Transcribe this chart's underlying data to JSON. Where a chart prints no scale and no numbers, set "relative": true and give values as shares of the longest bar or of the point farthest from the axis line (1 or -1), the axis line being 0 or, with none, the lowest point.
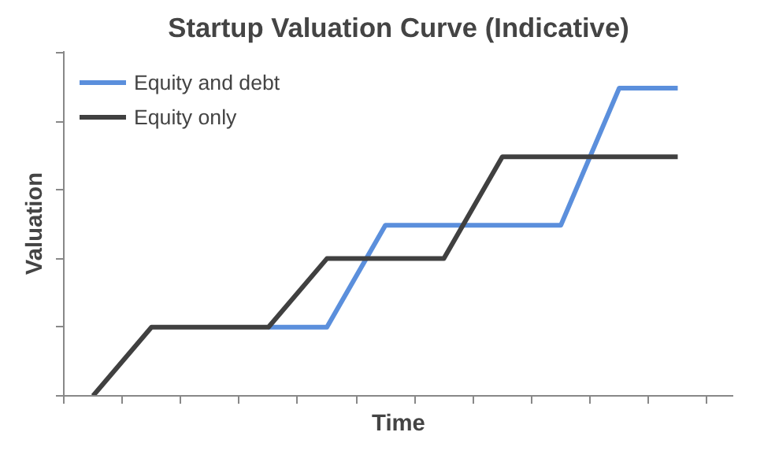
{
  "chart_data": {
    "type": "line",
    "title": "Startup Valuation Curve (Indicative)",
    "xlabel": "Time",
    "ylabel": "Valuation",
    "relative": true,
    "categories": [
      null,
      null,
      null,
      null,
      null,
      null,
      null,
      null,
      null,
      null,
      null
    ],
    "series": [
      {
        "name": "Equity and debt",
        "color": "#5b8fdc",
        "values": [
          null,
          null,
          null,
          0.223,
          0.223,
          0.554,
          0.554,
          0.554,
          0.554,
          1,
          1
        ]
      },
      {
        "name": "Equity only",
        "color": "#404040",
        "values": [
          0,
          0.223,
          0.223,
          0.223,
          0.446,
          0.446,
          0.446,
          0.777,
          0.777,
          0.777,
          0.777
        ]
      }
    ],
    "legend": "top left",
    "grid": false,
    "tick_labels": false,
    "marker": "none",
    "line_style": "solid"
  }
}
